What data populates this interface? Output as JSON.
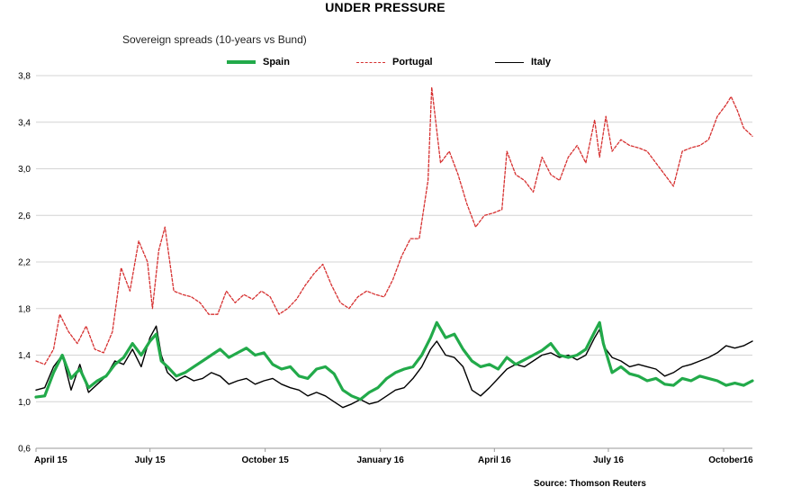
{
  "chart_data": {
    "type": "line",
    "title": "UNDER PRESSURE",
    "subtitle": "Sovereign spreads (10-years vs Bund)",
    "source": "Source: Thomson Reuters",
    "x_ticks": [
      "April 15",
      "July 15",
      "October 15",
      "January 16",
      "April 16",
      "July 16",
      "October16"
    ],
    "x_range": [
      "2015-04-01",
      "2016-10-24"
    ],
    "y_ticks": [
      "0,6",
      "1,0",
      "1,4",
      "1,8",
      "2,2",
      "2,6",
      "3,0",
      "3,4",
      "3,8"
    ],
    "ylim": [
      0.6,
      3.8
    ],
    "grid": "horizontal",
    "legend_position": "top",
    "series": [
      {
        "name": "Spain",
        "color": "#22aa4a",
        "style": "solid",
        "points": [
          [
            "2015-04-01",
            1.04
          ],
          [
            "2015-04-08",
            1.05
          ],
          [
            "2015-04-15",
            1.25
          ],
          [
            "2015-04-22",
            1.4
          ],
          [
            "2015-04-29",
            1.2
          ],
          [
            "2015-05-06",
            1.28
          ],
          [
            "2015-05-13",
            1.12
          ],
          [
            "2015-05-20",
            1.18
          ],
          [
            "2015-05-27",
            1.22
          ],
          [
            "2015-06-03",
            1.32
          ],
          [
            "2015-06-10",
            1.38
          ],
          [
            "2015-06-17",
            1.5
          ],
          [
            "2015-06-24",
            1.4
          ],
          [
            "2015-07-01",
            1.52
          ],
          [
            "2015-07-06",
            1.58
          ],
          [
            "2015-07-10",
            1.35
          ],
          [
            "2015-07-15",
            1.3
          ],
          [
            "2015-07-22",
            1.22
          ],
          [
            "2015-07-29",
            1.25
          ],
          [
            "2015-08-05",
            1.3
          ],
          [
            "2015-08-12",
            1.35
          ],
          [
            "2015-08-19",
            1.4
          ],
          [
            "2015-08-26",
            1.45
          ],
          [
            "2015-09-02",
            1.38
          ],
          [
            "2015-09-09",
            1.42
          ],
          [
            "2015-09-16",
            1.46
          ],
          [
            "2015-09-23",
            1.4
          ],
          [
            "2015-09-30",
            1.42
          ],
          [
            "2015-10-07",
            1.32
          ],
          [
            "2015-10-14",
            1.28
          ],
          [
            "2015-10-21",
            1.3
          ],
          [
            "2015-10-28",
            1.22
          ],
          [
            "2015-11-04",
            1.2
          ],
          [
            "2015-11-11",
            1.28
          ],
          [
            "2015-11-18",
            1.3
          ],
          [
            "2015-11-25",
            1.24
          ],
          [
            "2015-12-02",
            1.1
          ],
          [
            "2015-12-09",
            1.05
          ],
          [
            "2015-12-16",
            1.02
          ],
          [
            "2015-12-23",
            1.08
          ],
          [
            "2015-12-30",
            1.12
          ],
          [
            "2016-01-06",
            1.2
          ],
          [
            "2016-01-13",
            1.25
          ],
          [
            "2016-01-20",
            1.28
          ],
          [
            "2016-01-27",
            1.3
          ],
          [
            "2016-02-03",
            1.4
          ],
          [
            "2016-02-10",
            1.55
          ],
          [
            "2016-02-15",
            1.68
          ],
          [
            "2016-02-22",
            1.55
          ],
          [
            "2016-02-29",
            1.58
          ],
          [
            "2016-03-07",
            1.45
          ],
          [
            "2016-03-14",
            1.35
          ],
          [
            "2016-03-21",
            1.3
          ],
          [
            "2016-03-28",
            1.32
          ],
          [
            "2016-04-04",
            1.28
          ],
          [
            "2016-04-11",
            1.38
          ],
          [
            "2016-04-18",
            1.32
          ],
          [
            "2016-04-25",
            1.36
          ],
          [
            "2016-05-02",
            1.4
          ],
          [
            "2016-05-09",
            1.44
          ],
          [
            "2016-05-16",
            1.5
          ],
          [
            "2016-05-23",
            1.4
          ],
          [
            "2016-05-30",
            1.38
          ],
          [
            "2016-06-06",
            1.4
          ],
          [
            "2016-06-13",
            1.45
          ],
          [
            "2016-06-20",
            1.6
          ],
          [
            "2016-06-24",
            1.68
          ],
          [
            "2016-06-27",
            1.5
          ],
          [
            "2016-07-04",
            1.25
          ],
          [
            "2016-07-11",
            1.3
          ],
          [
            "2016-07-18",
            1.24
          ],
          [
            "2016-07-25",
            1.22
          ],
          [
            "2016-08-01",
            1.18
          ],
          [
            "2016-08-08",
            1.2
          ],
          [
            "2016-08-15",
            1.15
          ],
          [
            "2016-08-22",
            1.14
          ],
          [
            "2016-08-29",
            1.2
          ],
          [
            "2016-09-05",
            1.18
          ],
          [
            "2016-09-12",
            1.22
          ],
          [
            "2016-09-19",
            1.2
          ],
          [
            "2016-09-26",
            1.18
          ],
          [
            "2016-10-03",
            1.14
          ],
          [
            "2016-10-10",
            1.16
          ],
          [
            "2016-10-17",
            1.14
          ],
          [
            "2016-10-24",
            1.18
          ]
        ]
      },
      {
        "name": "Portugal",
        "color": "#d63030",
        "style": "dashed",
        "points": [
          [
            "2015-04-01",
            1.35
          ],
          [
            "2015-04-08",
            1.32
          ],
          [
            "2015-04-15",
            1.45
          ],
          [
            "2015-04-20",
            1.75
          ],
          [
            "2015-04-27",
            1.6
          ],
          [
            "2015-05-04",
            1.5
          ],
          [
            "2015-05-11",
            1.65
          ],
          [
            "2015-05-18",
            1.45
          ],
          [
            "2015-05-25",
            1.42
          ],
          [
            "2015-06-01",
            1.6
          ],
          [
            "2015-06-08",
            2.15
          ],
          [
            "2015-06-15",
            1.95
          ],
          [
            "2015-06-22",
            2.38
          ],
          [
            "2015-06-29",
            2.2
          ],
          [
            "2015-07-03",
            1.8
          ],
          [
            "2015-07-08",
            2.3
          ],
          [
            "2015-07-13",
            2.5
          ],
          [
            "2015-07-20",
            1.95
          ],
          [
            "2015-07-27",
            1.92
          ],
          [
            "2015-08-03",
            1.9
          ],
          [
            "2015-08-10",
            1.85
          ],
          [
            "2015-08-17",
            1.75
          ],
          [
            "2015-08-24",
            1.75
          ],
          [
            "2015-08-31",
            1.95
          ],
          [
            "2015-09-07",
            1.85
          ],
          [
            "2015-09-14",
            1.92
          ],
          [
            "2015-09-21",
            1.88
          ],
          [
            "2015-09-28",
            1.95
          ],
          [
            "2015-10-05",
            1.9
          ],
          [
            "2015-10-12",
            1.75
          ],
          [
            "2015-10-19",
            1.8
          ],
          [
            "2015-10-26",
            1.88
          ],
          [
            "2015-11-02",
            2.0
          ],
          [
            "2015-11-09",
            2.1
          ],
          [
            "2015-11-16",
            2.18
          ],
          [
            "2015-11-23",
            2.0
          ],
          [
            "2015-11-30",
            1.85
          ],
          [
            "2015-12-07",
            1.8
          ],
          [
            "2015-12-14",
            1.9
          ],
          [
            "2015-12-21",
            1.95
          ],
          [
            "2015-12-28",
            1.92
          ],
          [
            "2016-01-04",
            1.9
          ],
          [
            "2016-01-11",
            2.05
          ],
          [
            "2016-01-18",
            2.25
          ],
          [
            "2016-01-25",
            2.4
          ],
          [
            "2016-02-01",
            2.4
          ],
          [
            "2016-02-08",
            2.9
          ],
          [
            "2016-02-11",
            3.7
          ],
          [
            "2016-02-18",
            3.05
          ],
          [
            "2016-02-25",
            3.15
          ],
          [
            "2016-03-03",
            2.95
          ],
          [
            "2016-03-10",
            2.7
          ],
          [
            "2016-03-17",
            2.5
          ],
          [
            "2016-03-24",
            2.6
          ],
          [
            "2016-03-31",
            2.62
          ],
          [
            "2016-04-07",
            2.65
          ],
          [
            "2016-04-11",
            3.15
          ],
          [
            "2016-04-18",
            2.95
          ],
          [
            "2016-04-25",
            2.9
          ],
          [
            "2016-05-02",
            2.8
          ],
          [
            "2016-05-09",
            3.1
          ],
          [
            "2016-05-16",
            2.95
          ],
          [
            "2016-05-23",
            2.9
          ],
          [
            "2016-05-30",
            3.1
          ],
          [
            "2016-06-06",
            3.2
          ],
          [
            "2016-06-13",
            3.05
          ],
          [
            "2016-06-20",
            3.42
          ],
          [
            "2016-06-24",
            3.1
          ],
          [
            "2016-06-29",
            3.45
          ],
          [
            "2016-07-04",
            3.15
          ],
          [
            "2016-07-11",
            3.25
          ],
          [
            "2016-07-18",
            3.2
          ],
          [
            "2016-07-25",
            3.18
          ],
          [
            "2016-08-01",
            3.15
          ],
          [
            "2016-08-08",
            3.05
          ],
          [
            "2016-08-15",
            2.95
          ],
          [
            "2016-08-22",
            2.85
          ],
          [
            "2016-08-29",
            3.15
          ],
          [
            "2016-09-05",
            3.18
          ],
          [
            "2016-09-12",
            3.2
          ],
          [
            "2016-09-19",
            3.25
          ],
          [
            "2016-09-26",
            3.45
          ],
          [
            "2016-10-03",
            3.55
          ],
          [
            "2016-10-07",
            3.62
          ],
          [
            "2016-10-12",
            3.5
          ],
          [
            "2016-10-17",
            3.35
          ],
          [
            "2016-10-24",
            3.28
          ]
        ]
      },
      {
        "name": "Italy",
        "color": "#000000",
        "style": "solid",
        "points": [
          [
            "2015-04-01",
            1.1
          ],
          [
            "2015-04-08",
            1.12
          ],
          [
            "2015-04-15",
            1.3
          ],
          [
            "2015-04-22",
            1.4
          ],
          [
            "2015-04-29",
            1.1
          ],
          [
            "2015-05-06",
            1.32
          ],
          [
            "2015-05-13",
            1.08
          ],
          [
            "2015-05-20",
            1.15
          ],
          [
            "2015-05-27",
            1.22
          ],
          [
            "2015-06-03",
            1.35
          ],
          [
            "2015-06-10",
            1.32
          ],
          [
            "2015-06-17",
            1.45
          ],
          [
            "2015-06-24",
            1.3
          ],
          [
            "2015-07-01",
            1.55
          ],
          [
            "2015-07-06",
            1.65
          ],
          [
            "2015-07-10",
            1.4
          ],
          [
            "2015-07-15",
            1.25
          ],
          [
            "2015-07-22",
            1.18
          ],
          [
            "2015-07-29",
            1.22
          ],
          [
            "2015-08-05",
            1.18
          ],
          [
            "2015-08-12",
            1.2
          ],
          [
            "2015-08-19",
            1.25
          ],
          [
            "2015-08-26",
            1.22
          ],
          [
            "2015-09-02",
            1.15
          ],
          [
            "2015-09-09",
            1.18
          ],
          [
            "2015-09-16",
            1.2
          ],
          [
            "2015-09-23",
            1.15
          ],
          [
            "2015-09-30",
            1.18
          ],
          [
            "2015-10-07",
            1.2
          ],
          [
            "2015-10-14",
            1.15
          ],
          [
            "2015-10-21",
            1.12
          ],
          [
            "2015-10-28",
            1.1
          ],
          [
            "2015-11-04",
            1.05
          ],
          [
            "2015-11-11",
            1.08
          ],
          [
            "2015-11-18",
            1.05
          ],
          [
            "2015-11-25",
            1.0
          ],
          [
            "2015-12-02",
            0.95
          ],
          [
            "2015-12-09",
            0.98
          ],
          [
            "2015-12-16",
            1.02
          ],
          [
            "2015-12-23",
            0.98
          ],
          [
            "2015-12-30",
            1.0
          ],
          [
            "2016-01-06",
            1.05
          ],
          [
            "2016-01-13",
            1.1
          ],
          [
            "2016-01-20",
            1.12
          ],
          [
            "2016-01-27",
            1.2
          ],
          [
            "2016-02-03",
            1.3
          ],
          [
            "2016-02-10",
            1.45
          ],
          [
            "2016-02-15",
            1.52
          ],
          [
            "2016-02-22",
            1.4
          ],
          [
            "2016-02-29",
            1.38
          ],
          [
            "2016-03-07",
            1.3
          ],
          [
            "2016-03-14",
            1.1
          ],
          [
            "2016-03-21",
            1.05
          ],
          [
            "2016-03-28",
            1.12
          ],
          [
            "2016-04-04",
            1.2
          ],
          [
            "2016-04-11",
            1.28
          ],
          [
            "2016-04-18",
            1.32
          ],
          [
            "2016-04-25",
            1.3
          ],
          [
            "2016-05-02",
            1.35
          ],
          [
            "2016-05-09",
            1.4
          ],
          [
            "2016-05-16",
            1.42
          ],
          [
            "2016-05-23",
            1.38
          ],
          [
            "2016-05-30",
            1.4
          ],
          [
            "2016-06-06",
            1.36
          ],
          [
            "2016-06-13",
            1.4
          ],
          [
            "2016-06-20",
            1.55
          ],
          [
            "2016-06-24",
            1.62
          ],
          [
            "2016-06-27",
            1.48
          ],
          [
            "2016-07-04",
            1.38
          ],
          [
            "2016-07-11",
            1.35
          ],
          [
            "2016-07-18",
            1.3
          ],
          [
            "2016-07-25",
            1.32
          ],
          [
            "2016-08-01",
            1.3
          ],
          [
            "2016-08-08",
            1.28
          ],
          [
            "2016-08-15",
            1.22
          ],
          [
            "2016-08-22",
            1.25
          ],
          [
            "2016-08-29",
            1.3
          ],
          [
            "2016-09-05",
            1.32
          ],
          [
            "2016-09-12",
            1.35
          ],
          [
            "2016-09-19",
            1.38
          ],
          [
            "2016-09-26",
            1.42
          ],
          [
            "2016-10-03",
            1.48
          ],
          [
            "2016-10-10",
            1.46
          ],
          [
            "2016-10-17",
            1.48
          ],
          [
            "2016-10-24",
            1.52
          ]
        ]
      }
    ]
  }
}
